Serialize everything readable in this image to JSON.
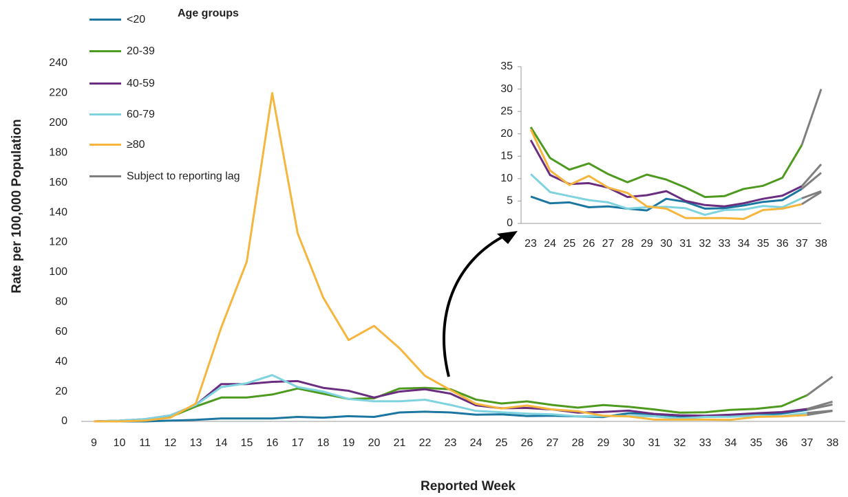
{
  "chart_data": {
    "type": "line",
    "legend_title": "Age groups",
    "ylabel": "Rate per 100,000 Population",
    "xlabel": "Reported Week",
    "x": [
      9,
      10,
      11,
      12,
      13,
      14,
      15,
      16,
      17,
      18,
      19,
      20,
      21,
      22,
      23,
      24,
      25,
      26,
      27,
      28,
      29,
      30,
      31,
      32,
      33,
      34,
      35,
      36,
      37,
      38
    ],
    "xlim": [
      8.5,
      38.5
    ],
    "ylim": [
      0,
      240
    ],
    "yticks": [
      0,
      20,
      40,
      60,
      80,
      100,
      120,
      140,
      160,
      180,
      200,
      220,
      240
    ],
    "series": [
      {
        "name": "<20",
        "color": "#1b76a0",
        "values": [
          0,
          0,
          0,
          0.5,
          1,
          2,
          2,
          2,
          3,
          2.5,
          3.5,
          3,
          6,
          6.5,
          6,
          4.5,
          4.7,
          3.6,
          3.8,
          3.3,
          2.9,
          5.5,
          4.8,
          3.3,
          3.4,
          4,
          4.8,
          5.2,
          7.7,
          11.3
        ]
      },
      {
        "name": "20-39",
        "color": "#4e9a1e",
        "values": [
          0,
          0.3,
          1,
          3,
          10,
          16,
          16,
          18,
          22,
          18.5,
          15,
          15.5,
          22,
          22.5,
          21.5,
          14.6,
          12,
          13.4,
          11,
          9.2,
          10.9,
          9.8,
          8,
          5.9,
          6.1,
          7.7,
          8.4,
          10.2,
          17.5,
          30
        ]
      },
      {
        "name": "40-59",
        "color": "#6a2d7f",
        "values": [
          0,
          0.5,
          1.5,
          4,
          11,
          25,
          25,
          26.5,
          27,
          22.5,
          20.5,
          16,
          20,
          21.5,
          18.6,
          10.8,
          8.8,
          9,
          8,
          5.9,
          6.3,
          7.2,
          5,
          4.1,
          3.8,
          4.5,
          5.5,
          6.2,
          8.3,
          13.2
        ]
      },
      {
        "name": "60-79",
        "color": "#7ed3de",
        "values": [
          0,
          0.5,
          1.5,
          4,
          11,
          23,
          25.5,
          31,
          23,
          20,
          15,
          13.5,
          13.5,
          14.5,
          11,
          7,
          6.1,
          5.2,
          4.7,
          3.3,
          3.6,
          3.7,
          3.4,
          1.9,
          3,
          3.1,
          3.9,
          3.6,
          5.6,
          7.2
        ]
      },
      {
        "name": "≥80",
        "color": "#f6b53d",
        "values": [
          0,
          0,
          0.5,
          2.5,
          12,
          63,
          107,
          220,
          126,
          83,
          54.5,
          64,
          49,
          30.5,
          21,
          11.8,
          8.6,
          10.6,
          8,
          6.8,
          3.8,
          3.3,
          1.2,
          1.2,
          1.2,
          1,
          3,
          3.3,
          4.3,
          7
        ]
      }
    ],
    "reporting_lag": {
      "name": "Subject to reporting lag",
      "color": "#7f7f7f",
      "x_from": 37
    },
    "inset": {
      "xlim": [
        23,
        38
      ],
      "ylim": [
        0,
        35
      ],
      "yticks": [
        0,
        5,
        10,
        15,
        20,
        25,
        30,
        35
      ]
    }
  }
}
